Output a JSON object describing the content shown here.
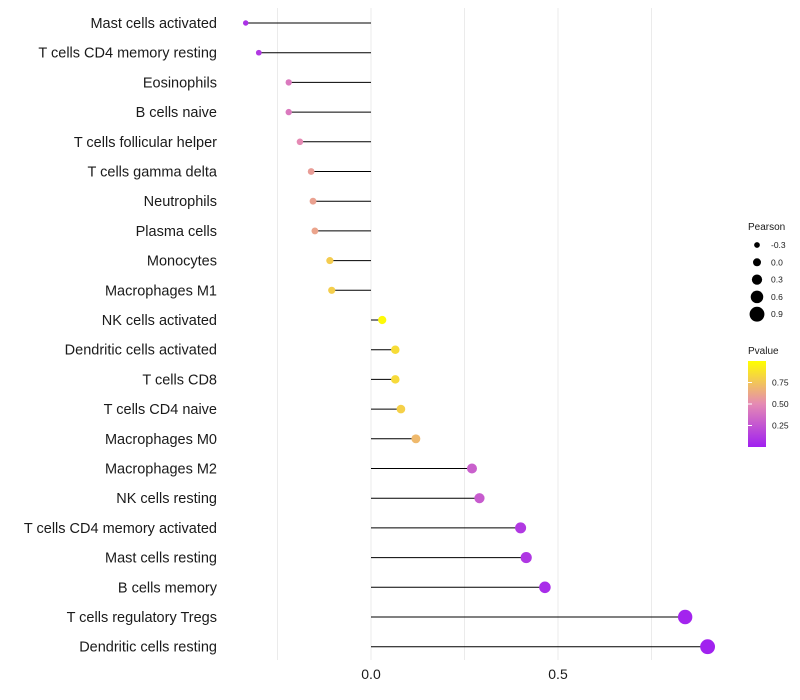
{
  "chart_data": {
    "type": "lollipop",
    "title": "",
    "xlabel": "",
    "ylabel": "",
    "xlim": [
      -0.36,
      0.95
    ],
    "xticks": [
      0.0,
      0.5
    ],
    "xtick_labels": [
      "0.0",
      "0.5"
    ],
    "grid": true,
    "categories": [
      "Mast cells activated",
      "T cells CD4 memory resting",
      "Eosinophils",
      "B cells naive",
      "T cells follicular helper",
      "T cells gamma delta",
      "Neutrophils",
      "Plasma cells",
      "Monocytes",
      "Macrophages M1",
      "NK cells activated",
      "Dendritic cells activated",
      "T cells CD8",
      "T cells CD4 naive",
      "Macrophages M0",
      "Macrophages M2",
      "NK cells resting",
      "T cells CD4 memory activated",
      "Mast cells resting",
      "B cells memory",
      "T cells regulatory  Tregs",
      "Dendritic cells resting"
    ],
    "pearson": [
      -0.335,
      -0.3,
      -0.22,
      -0.22,
      -0.19,
      -0.16,
      -0.155,
      -0.15,
      -0.11,
      -0.105,
      0.03,
      0.065,
      0.065,
      0.08,
      0.12,
      0.27,
      0.29,
      0.4,
      0.415,
      0.465,
      0.84,
      0.9
    ],
    "pvalue": [
      0.08,
      0.12,
      0.42,
      0.42,
      0.5,
      0.58,
      0.6,
      0.61,
      0.78,
      0.79,
      0.98,
      0.85,
      0.84,
      0.8,
      0.7,
      0.3,
      0.28,
      0.12,
      0.11,
      0.06,
      0.02,
      0.01
    ],
    "legend": {
      "size_title": "Pearson",
      "size_values": [
        -0.3,
        0.0,
        0.3,
        0.6,
        0.9
      ],
      "size_labels": [
        "-0.3",
        "0.0",
        "0.3",
        "0.6",
        "0.9"
      ],
      "color_title": "Pvalue",
      "color_ticks": [
        0.75,
        0.5,
        0.25
      ],
      "color_tick_labels": [
        "0.75",
        "0.50",
        "0.25"
      ],
      "color_range": [
        0.0,
        1.0
      ],
      "color_low": "#a020f0",
      "color_high": "#ffff00",
      "position": "right"
    }
  }
}
